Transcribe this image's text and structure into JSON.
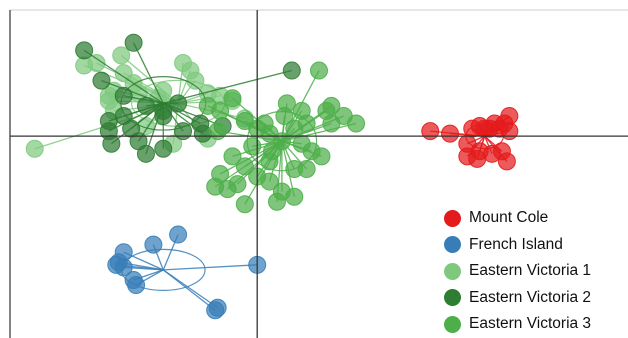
{
  "chart_data": {
    "type": "scatter",
    "grid": false,
    "legend_position": "bottom-right",
    "x_range": [
      -10,
      15
    ],
    "y_range": [
      -8,
      5
    ],
    "axes_lines_at": [
      0,
      0
    ],
    "series": [
      {
        "name": "Mount Cole",
        "color": "#e41a1c",
        "centroid": [
          9.2,
          0.0
        ],
        "points": [
          [
            7.0,
            0.2
          ],
          [
            7.8,
            0.1
          ],
          [
            8.5,
            -0.3
          ],
          [
            8.7,
            0.3
          ],
          [
            9.0,
            0.4
          ],
          [
            9.2,
            0.3
          ],
          [
            9.4,
            0.3
          ],
          [
            9.6,
            0.5
          ],
          [
            9.8,
            0.3
          ],
          [
            10.0,
            0.5
          ],
          [
            10.2,
            0.8
          ],
          [
            10.2,
            0.2
          ],
          [
            9.5,
            -0.7
          ],
          [
            9.9,
            -0.6
          ],
          [
            10.1,
            -1.0
          ],
          [
            8.5,
            -0.8
          ],
          [
            9.0,
            -0.6
          ],
          [
            8.9,
            -0.9
          ]
        ]
      },
      {
        "name": "French Island",
        "color": "#377eb8",
        "centroid": [
          -3.8,
          -5.3
        ],
        "points": [
          [
            -3.2,
            -3.9
          ],
          [
            -4.2,
            -4.3
          ],
          [
            -5.4,
            -4.6
          ],
          [
            -5.7,
            -5.1
          ],
          [
            -5.6,
            -5.0
          ],
          [
            -5.4,
            -5.2
          ],
          [
            -5.0,
            -5.7
          ],
          [
            -4.9,
            -5.9
          ],
          [
            0.0,
            -5.1
          ],
          [
            -1.6,
            -6.8
          ],
          [
            -1.7,
            -6.9
          ]
        ]
      },
      {
        "name": "Eastern Victoria 1",
        "color": "#7fc97f",
        "centroid": [
          -3.2,
          1.3
        ],
        "points": [
          [
            -9.0,
            -0.5
          ],
          [
            -7.0,
            2.8
          ],
          [
            -6.5,
            2.9
          ],
          [
            -5.5,
            3.2
          ],
          [
            -5.4,
            2.5
          ],
          [
            -5.0,
            2.1
          ],
          [
            -6.0,
            1.6
          ],
          [
            -5.8,
            1.8
          ],
          [
            -4.8,
            1.7
          ],
          [
            -4.0,
            1.5
          ],
          [
            -3.8,
            1.8
          ],
          [
            -3.0,
            2.9
          ],
          [
            -2.7,
            2.6
          ],
          [
            -2.5,
            2.2
          ],
          [
            -2.0,
            1.7
          ],
          [
            -1.5,
            1.6
          ],
          [
            -0.5,
            0.7
          ],
          [
            -1.0,
            1.4
          ],
          [
            -4.5,
            0.4
          ],
          [
            -3.4,
            -0.3
          ],
          [
            -2.0,
            -0.1
          ],
          [
            -5.8,
            1.0
          ],
          [
            -6.0,
            1.4
          ]
        ]
      },
      {
        "name": "Eastern Victoria 2",
        "color": "#2e7d32",
        "centroid": [
          -3.8,
          1.3
        ],
        "points": [
          [
            -7.0,
            3.4
          ],
          [
            -5.0,
            3.7
          ],
          [
            -6.3,
            2.2
          ],
          [
            -5.4,
            1.6
          ],
          [
            -4.5,
            1.2
          ],
          [
            -3.8,
            1.0
          ],
          [
            -3.2,
            1.3
          ],
          [
            -6.0,
            0.2
          ],
          [
            -5.1,
            0.3
          ],
          [
            -5.4,
            0.8
          ],
          [
            -6.0,
            0.6
          ],
          [
            -3.0,
            0.2
          ],
          [
            -1.4,
            0.4
          ],
          [
            -2.2,
            0.1
          ],
          [
            -3.8,
            0.8
          ],
          [
            -4.8,
            -0.2
          ],
          [
            -4.5,
            -0.7
          ],
          [
            -5.9,
            -0.3
          ],
          [
            -3.8,
            -0.5
          ],
          [
            -2.3,
            0.5
          ],
          [
            1.4,
            2.6
          ]
        ]
      },
      {
        "name": "Eastern Victoria 3",
        "color": "#4daf4a",
        "centroid": [
          1.0,
          -0.2
        ],
        "points": [
          [
            -2.0,
            1.2
          ],
          [
            -1.5,
            1.0
          ],
          [
            -1.0,
            1.5
          ],
          [
            -0.5,
            0.6
          ],
          [
            0.0,
            0.3
          ],
          [
            0.5,
            0.1
          ],
          [
            1.0,
            -0.2
          ],
          [
            1.5,
            0.3
          ],
          [
            2.0,
            0.5
          ],
          [
            1.2,
            1.3
          ],
          [
            2.5,
            2.6
          ],
          [
            3.0,
            1.2
          ],
          [
            3.5,
            0.8
          ],
          [
            3.0,
            0.5
          ],
          [
            4.0,
            0.5
          ],
          [
            2.8,
            1.0
          ],
          [
            1.8,
            1.0
          ],
          [
            0.5,
            -1.0
          ],
          [
            -0.5,
            -1.2
          ],
          [
            -1.0,
            -0.8
          ],
          [
            -1.5,
            -1.5
          ],
          [
            -0.8,
            -1.9
          ],
          [
            0.0,
            -1.6
          ],
          [
            0.5,
            -1.8
          ],
          [
            1.5,
            -1.3
          ],
          [
            2.0,
            -1.3
          ],
          [
            1.0,
            -2.2
          ],
          [
            1.5,
            -2.4
          ],
          [
            -0.5,
            -2.7
          ],
          [
            -1.2,
            -2.1
          ],
          [
            -1.7,
            -2.0
          ],
          [
            0.8,
            -2.6
          ],
          [
            2.2,
            -0.6
          ],
          [
            1.8,
            -0.3
          ],
          [
            0.3,
            0.5
          ],
          [
            -0.2,
            -0.4
          ],
          [
            0.6,
            -0.6
          ],
          [
            1.1,
            0.8
          ],
          [
            -1.6,
            0.2
          ],
          [
            2.6,
            -0.8
          ]
        ]
      }
    ]
  }
}
